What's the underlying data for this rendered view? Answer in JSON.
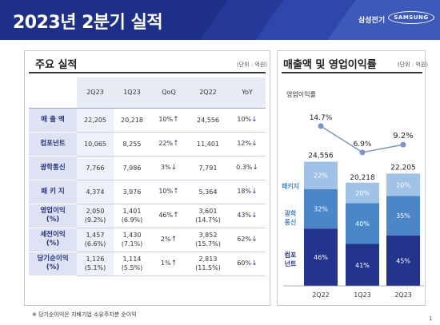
{
  "header": {
    "title": "2023년 2분기 실적",
    "brand_ko": "삼성전기",
    "brand_en": "SAMSUNG"
  },
  "left": {
    "title": "주요 실적",
    "unit": "(단위 : 억원)",
    "columns": [
      "2Q23",
      "1Q23",
      "QoQ",
      "2Q22",
      "YoY"
    ],
    "rows": [
      {
        "label": "매 출 액",
        "cells": [
          "22,205",
          "20,218",
          "10%",
          "24,556",
          "10%"
        ],
        "qoq_arrow": "↑",
        "yoy_arrow": "↓"
      },
      {
        "label": "컴포넌트",
        "cells": [
          "10,065",
          "8,255",
          "22%",
          "11,401",
          "12%"
        ],
        "qoq_arrow": "↑",
        "yoy_arrow": "↓"
      },
      {
        "label": "광학통신",
        "cells": [
          "7,766",
          "7,986",
          "3%",
          "7,791",
          "0.3%"
        ],
        "qoq_arrow": "↓",
        "yoy_arrow": "↓"
      },
      {
        "label": "패 키 지",
        "cells": [
          "4,374",
          "3,976",
          "10%",
          "5,364",
          "18%"
        ],
        "qoq_arrow": "↑",
        "yoy_arrow": "↓"
      },
      {
        "label": "영업이익\n(%)",
        "cells": [
          "2,050\n(9.2%)",
          "1,401\n(6.9%)",
          "46%",
          "3,601\n(14.7%)",
          "43%"
        ],
        "qoq_arrow": "↑",
        "yoy_arrow": "↓"
      },
      {
        "label": "세전이익\n(%)",
        "cells": [
          "1,457\n(6.6%)",
          "1,430\n(7.1%)",
          "2%",
          "3,852\n(15.7%)",
          "62%"
        ],
        "qoq_arrow": "↑",
        "yoy_arrow": "↓"
      },
      {
        "label": "당기순이익\n(%)",
        "cells": [
          "1,126\n(5.1%)",
          "1,114\n(5.5%)",
          "1%",
          "2,813\n(11.5%)",
          "60%"
        ],
        "qoq_arrow": "↑",
        "yoy_arrow": "↓"
      }
    ],
    "note": "※ 당기순이익은 지배기업 소유주지분 순이익"
  },
  "right": {
    "title": "매출액 및 영업이익률",
    "unit": "(단위 : 억원)"
  },
  "chart_data": {
    "type": "bar",
    "categories": [
      "2Q22",
      "1Q23",
      "2Q23"
    ],
    "totals": [
      "24,556",
      "20,218",
      "22,205"
    ],
    "total_values": [
      24556,
      20218,
      22205
    ],
    "series": [
      {
        "name": "컴포넌트",
        "values": [
          46,
          41,
          45
        ],
        "labels": [
          "46%",
          "41%",
          "45%"
        ],
        "color": "#24348c"
      },
      {
        "name": "광학통신",
        "values": [
          32,
          40,
          35
        ],
        "labels": [
          "32%",
          "40%",
          "35%"
        ],
        "color": "#4b86c7"
      },
      {
        "name": "패키지",
        "values": [
          22,
          20,
          20
        ],
        "labels": [
          "22%",
          "20%",
          "20%"
        ],
        "color": "#9fc2e6"
      }
    ],
    "legend": [
      "패키지",
      "광학\n통신",
      "컴포\n넌트"
    ],
    "line": {
      "name": "영업이익률",
      "values": [
        14.7,
        6.9,
        9.2
      ],
      "labels": [
        "14.7%",
        "6.9%",
        "9.2%"
      ],
      "color": "#7a96c4"
    }
  },
  "page_number": "1"
}
